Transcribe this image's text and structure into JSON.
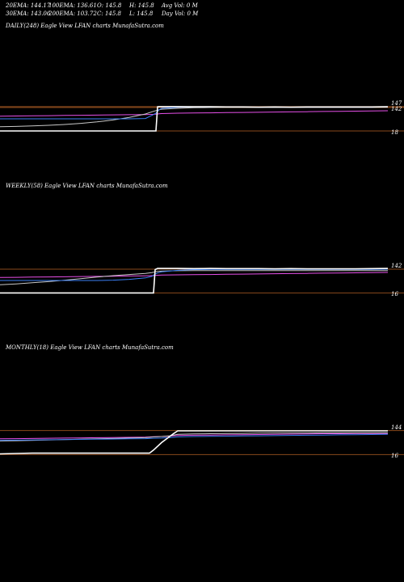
{
  "header": {
    "row1": [
      {
        "label": "20EMA:",
        "value": "144.17"
      },
      {
        "label": "100EMA:",
        "value": "136.61"
      },
      {
        "label": "O:",
        "value": "145.8"
      },
      {
        "label": "H:",
        "value": "145.8"
      },
      {
        "label": "Avg Vol:",
        "value": "0  M"
      }
    ],
    "row2": [
      {
        "label": "30EMA:",
        "value": "143.06"
      },
      {
        "label": "200EMA:",
        "value": "103.72"
      },
      {
        "label": "C:",
        "value": "145.8"
      },
      {
        "label": "L:",
        "value": "145.8"
      },
      {
        "label": "Day Vol:",
        "value": "0  M"
      }
    ]
  },
  "colors": {
    "background": "#000000",
    "price": "#ffffff",
    "ema_blue": "#3b7ff5",
    "ema_magenta": "#e64fe8",
    "ema_grey": "#c8c8c8",
    "level_line": "#8a4a1c"
  },
  "chart_data": [
    {
      "type": "line",
      "title": "DAILY(248) Eagle  View  LFAN  charts MunafaSutra.com",
      "y_labels": [
        "147",
        "142",
        "18"
      ],
      "levels": [
        147,
        142,
        18
      ],
      "ylim": [
        5,
        155
      ],
      "x": [
        0,
        20,
        40,
        60,
        80,
        100,
        120,
        140,
        160,
        180,
        190,
        193,
        195,
        197,
        200,
        220,
        240,
        260,
        280,
        300,
        320,
        340,
        360,
        380,
        400,
        420,
        440,
        460,
        480
      ],
      "series": [
        {
          "key": "price",
          "values": [
            18,
            18,
            18,
            18,
            18,
            18,
            18,
            18,
            18,
            18,
            18,
            18,
            146,
            147,
            147,
            147,
            146,
            146,
            145,
            145,
            144,
            145,
            144,
            145,
            145,
            145,
            145,
            145,
            146
          ]
        },
        {
          "key": "ema_blue",
          "values": [
            82,
            82,
            82,
            82,
            82,
            82,
            82,
            82,
            82,
            84,
            105,
            112,
            122,
            130,
            138,
            143,
            145,
            145,
            145,
            145,
            144,
            144,
            144,
            144,
            144,
            144,
            144,
            144,
            145
          ]
        },
        {
          "key": "ema_grey",
          "values": [
            40,
            42,
            45,
            48,
            52,
            58,
            66,
            76,
            90,
            108,
            122,
            126,
            128,
            130,
            133,
            138,
            141,
            142,
            143,
            143,
            143,
            143,
            143,
            143,
            143,
            143,
            143,
            143,
            144
          ]
        },
        {
          "key": "ema_magenta",
          "values": [
            96,
            97,
            98,
            99,
            100,
            101,
            102,
            103,
            104,
            105,
            106,
            107,
            108,
            109,
            110,
            112,
            113,
            114,
            115,
            116,
            117,
            118,
            119,
            120,
            121,
            122,
            123,
            124,
            125
          ]
        }
      ]
    },
    {
      "type": "line",
      "title": "WEEKLY(58) Eagle  View  LFAN  charts MunafaSutra.com",
      "y_labels": [
        "142",
        "16"
      ],
      "levels": [
        142,
        16
      ],
      "ylim": [
        5,
        155
      ],
      "x": [
        0,
        20,
        40,
        60,
        80,
        100,
        120,
        140,
        160,
        180,
        188,
        190,
        192,
        195,
        200,
        220,
        240,
        260,
        280,
        300,
        320,
        340,
        360,
        380,
        400,
        420,
        440,
        460,
        480
      ],
      "series": [
        {
          "key": "price",
          "values": [
            16,
            16,
            16,
            16,
            16,
            16,
            16,
            16,
            16,
            16,
            16,
            16,
            140,
            146,
            146,
            146,
            145,
            146,
            145,
            145,
            145,
            144,
            145,
            144,
            144,
            144,
            144,
            145,
            146
          ]
        },
        {
          "key": "ema_blue",
          "values": [
            82,
            82,
            82,
            82,
            82,
            82,
            82,
            84,
            88,
            96,
            104,
            110,
            116,
            122,
            128,
            136,
            140,
            141,
            141,
            141,
            141,
            141,
            141,
            141,
            141,
            141,
            141,
            141,
            142
          ]
        },
        {
          "key": "ema_grey",
          "values": [
            60,
            64,
            70,
            76,
            84,
            92,
            100,
            108,
            114,
            120,
            124,
            126,
            128,
            130,
            132,
            134,
            135,
            135,
            135,
            135,
            135,
            135,
            135,
            135,
            135,
            135,
            135,
            135,
            135
          ]
        },
        {
          "key": "ema_magenta",
          "values": [
            98,
            99,
            100,
            101,
            102,
            103,
            104,
            105,
            106,
            107,
            108,
            108,
            109,
            110,
            111,
            112,
            113,
            114,
            115,
            116,
            117,
            118,
            119,
            120,
            121,
            122,
            123,
            124,
            125
          ]
        }
      ]
    },
    {
      "type": "line",
      "title": "MONTHLY(18) Eagle  View  LFAN  charts MunafaSutra.com",
      "y_labels": [
        "144",
        "16"
      ],
      "levels": [
        144,
        16
      ],
      "ylim": [
        5,
        155
      ],
      "x": [
        0,
        20,
        40,
        60,
        80,
        100,
        120,
        140,
        160,
        180,
        185,
        190,
        200,
        210,
        215,
        220,
        240,
        260,
        280,
        300,
        320,
        340,
        360,
        380,
        400,
        420,
        440,
        460,
        480
      ],
      "series": [
        {
          "key": "price",
          "values": [
            20,
            22,
            24,
            24,
            24,
            24,
            24,
            24,
            24,
            24,
            24,
            40,
            80,
            112,
            128,
            142,
            142,
            142,
            142,
            142,
            142,
            142,
            142,
            142,
            142,
            142,
            142,
            142,
            142
          ]
        },
        {
          "key": "ema_blue",
          "values": [
            92,
            93,
            94,
            95,
            96,
            97,
            98,
            99,
            100,
            101,
            102,
            103,
            104,
            106,
            108,
            110,
            112,
            113,
            114,
            115,
            116,
            117,
            118,
            119,
            120,
            121,
            122,
            123,
            124
          ]
        },
        {
          "key": "ema_grey",
          "values": [
            88,
            90,
            92,
            94,
            96,
            98,
            100,
            102,
            104,
            106,
            108,
            110,
            112,
            116,
            120,
            124,
            126,
            127,
            128,
            129,
            130,
            131,
            131,
            131,
            132,
            132,
            132,
            132,
            132
          ]
        },
        {
          "key": "ema_magenta",
          "values": [
            100,
            101,
            102,
            103,
            104,
            105,
            106,
            107,
            108,
            109,
            110,
            111,
            112,
            114,
            116,
            118,
            119,
            120,
            121,
            122,
            123,
            124,
            125,
            126,
            127,
            127,
            128,
            128,
            128
          ]
        }
      ]
    }
  ]
}
